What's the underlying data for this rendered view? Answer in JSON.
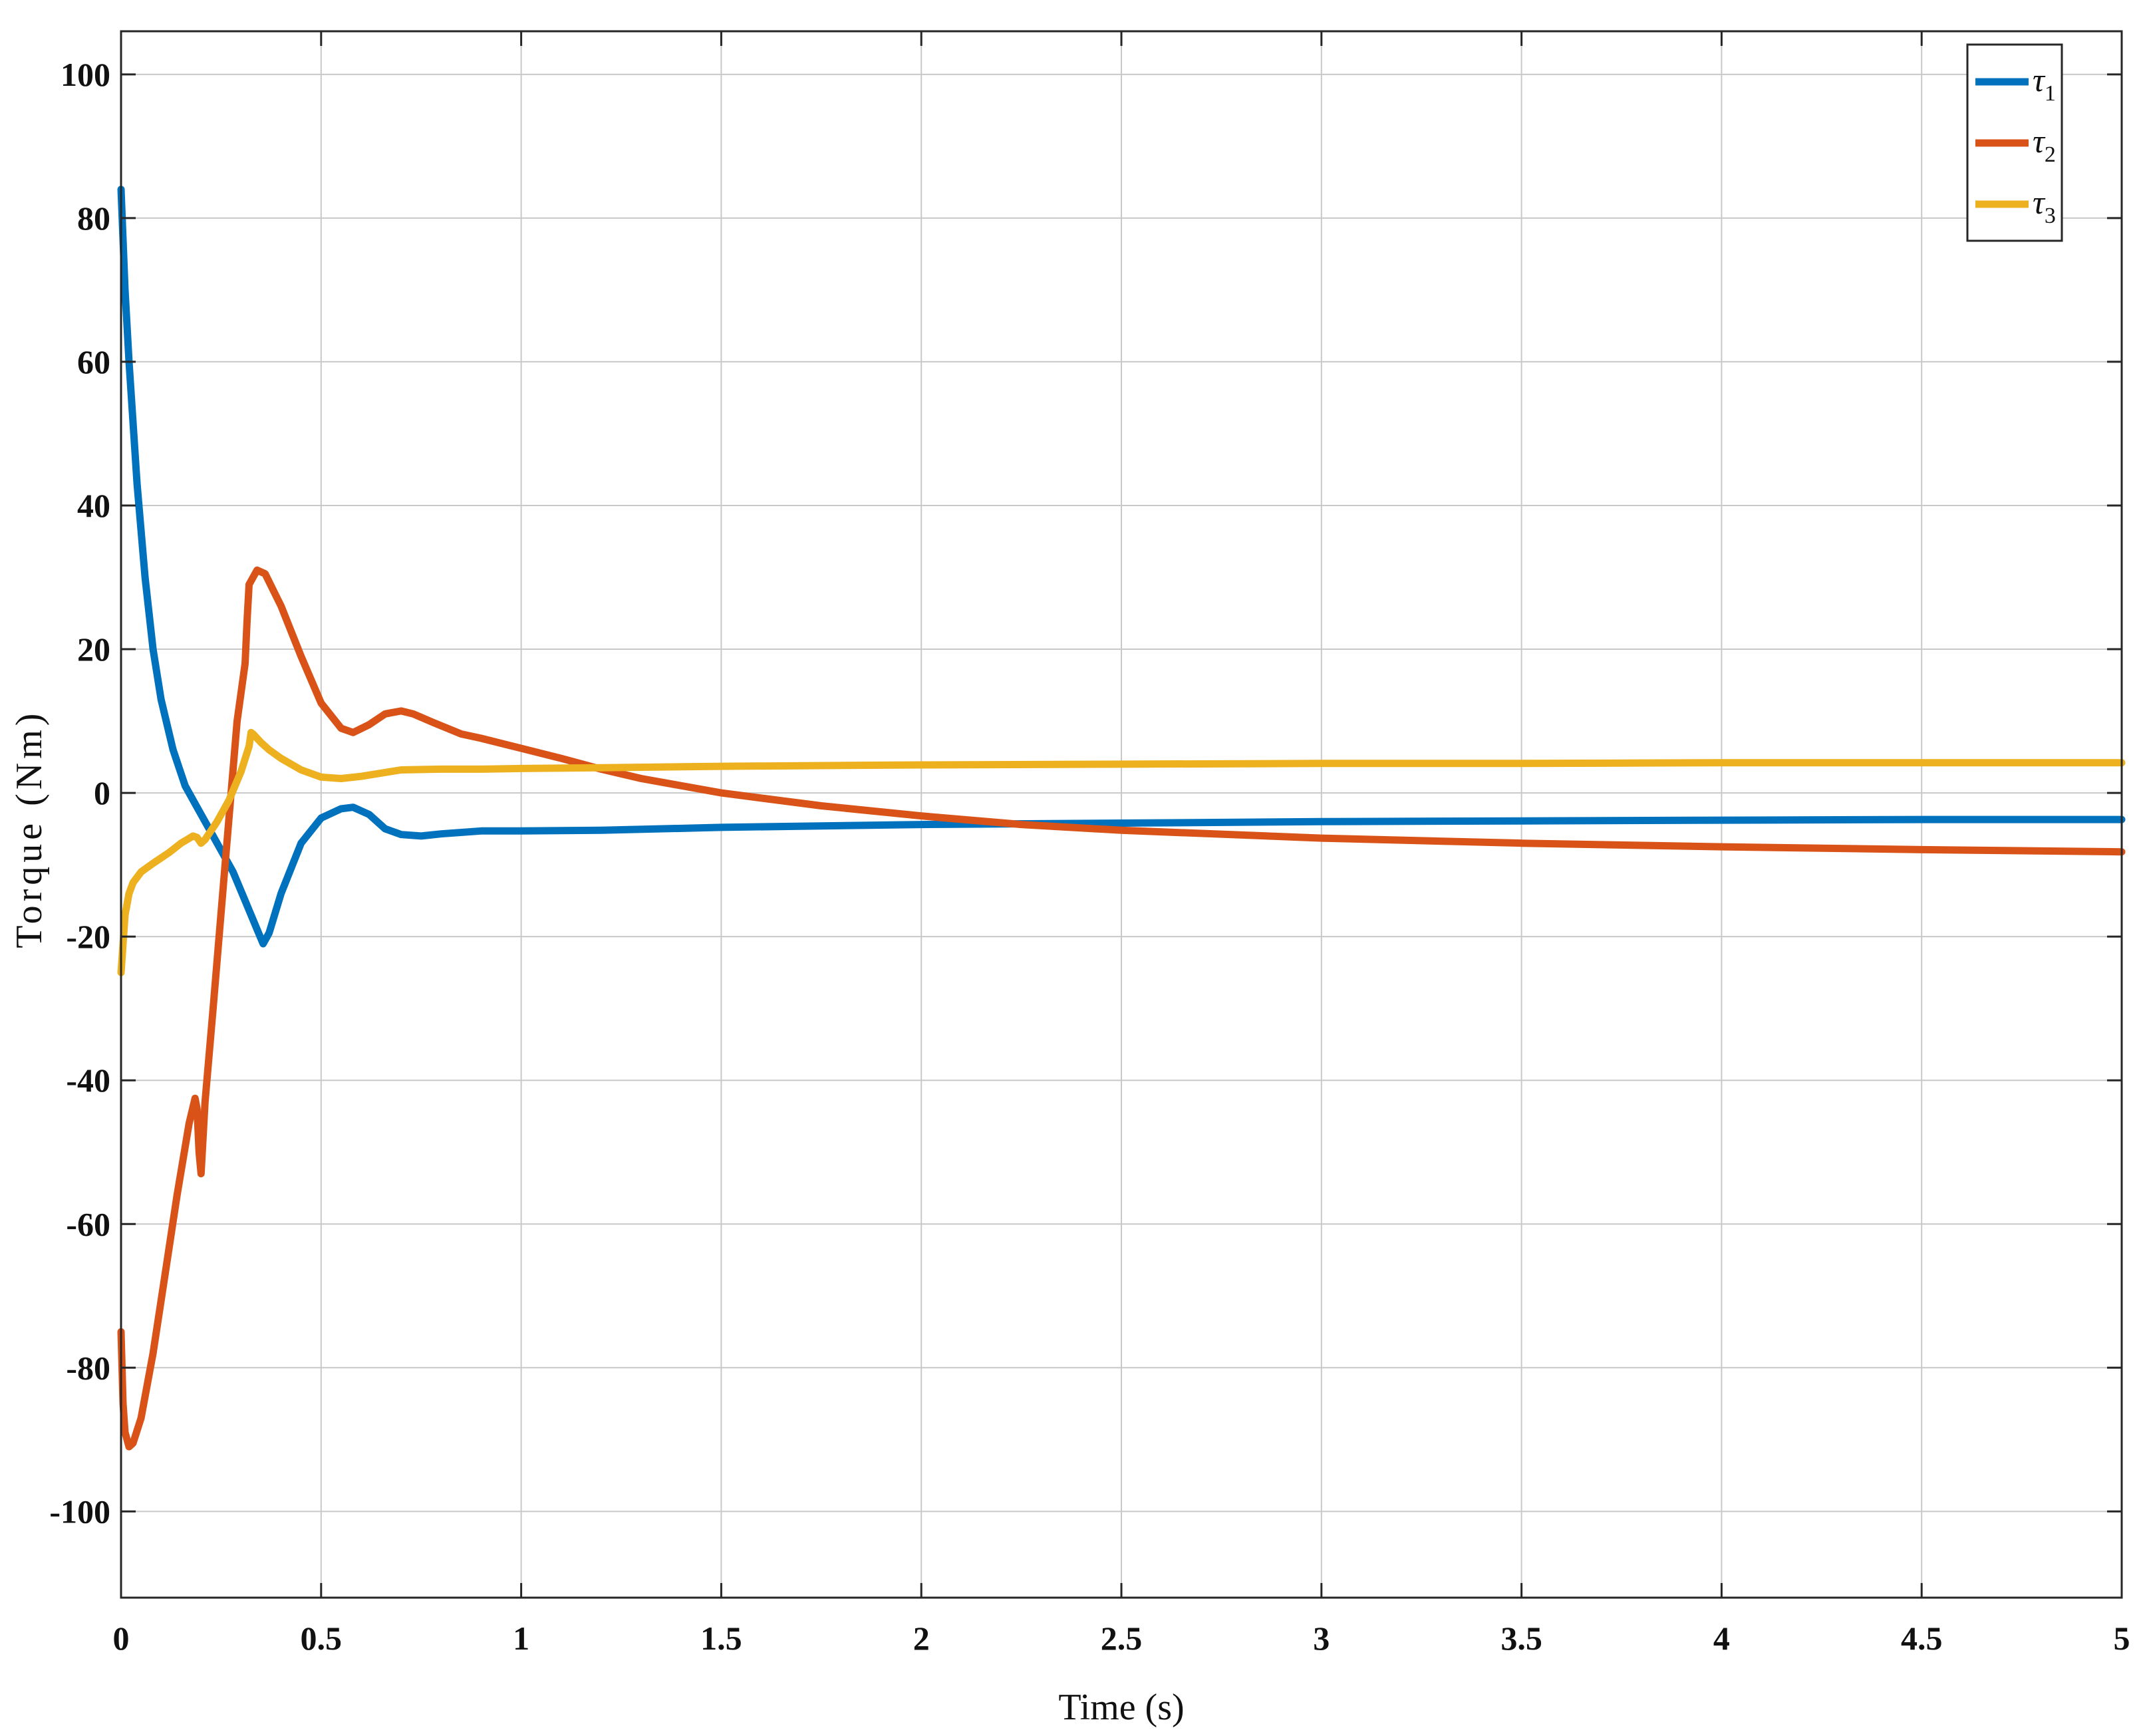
{
  "chart_data": {
    "type": "line",
    "title": "",
    "xlabel": "Time (s)",
    "ylabel": "Torque (Nm)",
    "xlim": [
      0,
      5
    ],
    "ylim": [
      -112,
      106
    ],
    "grid": true,
    "legend_position": "top-right",
    "xticks": [
      0,
      0.5,
      1,
      1.5,
      2,
      2.5,
      3,
      3.5,
      4,
      4.5,
      5
    ],
    "xtick_labels": [
      "0",
      "0.5",
      "1",
      "1.5",
      "2",
      "2.5",
      "3",
      "3.5",
      "4",
      "4.5",
      "5"
    ],
    "yticks": [
      100,
      80,
      60,
      40,
      20,
      0,
      -20,
      -40,
      -60,
      -80,
      -100
    ],
    "ytick_labels": [
      "100",
      "80",
      "60",
      "40",
      "20",
      "0",
      "-20",
      "-40",
      "-60",
      "-80",
      "-100"
    ],
    "series": [
      {
        "name": "τ1",
        "legend_base": "τ",
        "legend_sub": "1",
        "color": "#0072BD",
        "x": [
          0,
          0.01,
          0.02,
          0.04,
          0.06,
          0.08,
          0.1,
          0.13,
          0.16,
          0.19,
          0.22,
          0.25,
          0.28,
          0.31,
          0.34,
          0.355,
          0.37,
          0.4,
          0.45,
          0.5,
          0.55,
          0.58,
          0.62,
          0.66,
          0.7,
          0.75,
          0.8,
          0.9,
          1.0,
          1.2,
          1.5,
          2.0,
          2.5,
          3.0,
          3.5,
          4.0,
          4.5,
          5.0
        ],
        "y": [
          84,
          70,
          60,
          43,
          30,
          20,
          13,
          6,
          1,
          -2,
          -5,
          -8,
          -11,
          -15,
          -19,
          -21,
          -19.5,
          -14,
          -7,
          -3.5,
          -2.2,
          -2.0,
          -3,
          -5,
          -5.8,
          -6,
          -5.7,
          -5.3,
          -5.3,
          -5.2,
          -4.8,
          -4.4,
          -4.2,
          -4.0,
          -3.9,
          -3.8,
          -3.7,
          -3.7
        ]
      },
      {
        "name": "τ2",
        "legend_base": "τ",
        "legend_sub": "2",
        "color": "#D95319",
        "x": [
          0,
          0.005,
          0.01,
          0.02,
          0.03,
          0.05,
          0.08,
          0.11,
          0.14,
          0.17,
          0.185,
          0.19,
          0.195,
          0.2,
          0.21,
          0.23,
          0.26,
          0.29,
          0.31,
          0.315,
          0.32,
          0.34,
          0.36,
          0.4,
          0.45,
          0.5,
          0.55,
          0.58,
          0.62,
          0.66,
          0.7,
          0.73,
          0.78,
          0.85,
          0.9,
          1.0,
          1.1,
          1.2,
          1.3,
          1.5,
          1.75,
          2.0,
          2.25,
          2.5,
          3.0,
          3.5,
          4.0,
          4.5,
          5.0
        ],
        "y": [
          -75,
          -85,
          -89,
          -91,
          -90.5,
          -87,
          -78,
          -67,
          -56,
          -46,
          -42.5,
          -44,
          -50,
          -53,
          -43,
          -30,
          -10,
          10,
          18,
          24,
          29,
          31,
          30.5,
          26,
          19,
          12.5,
          9,
          8.4,
          9.5,
          11,
          11.4,
          11,
          9.8,
          8.2,
          7.6,
          6.2,
          4.8,
          3.3,
          2.0,
          0,
          -1.8,
          -3.2,
          -4.4,
          -5.2,
          -6.3,
          -7.0,
          -7.5,
          -7.9,
          -8.2
        ]
      },
      {
        "name": "τ3",
        "legend_base": "τ",
        "legend_sub": "3",
        "color": "#EDB120",
        "x": [
          0,
          0.005,
          0.01,
          0.02,
          0.03,
          0.05,
          0.08,
          0.12,
          0.15,
          0.18,
          0.19,
          0.2,
          0.21,
          0.24,
          0.27,
          0.3,
          0.32,
          0.325,
          0.33,
          0.35,
          0.37,
          0.4,
          0.45,
          0.5,
          0.55,
          0.6,
          0.7,
          0.8,
          0.9,
          1.0,
          1.2,
          1.5,
          2.0,
          2.5,
          3.0,
          3.5,
          4.0,
          4.5,
          5.0
        ],
        "y": [
          -25,
          -21,
          -17,
          -14,
          -12.5,
          -11,
          -9.8,
          -8.3,
          -7,
          -6,
          -6.2,
          -7,
          -6.5,
          -4,
          -1,
          3,
          6.5,
          8.4,
          8.2,
          7,
          6,
          4.8,
          3.2,
          2.2,
          2.0,
          2.3,
          3.2,
          3.3,
          3.3,
          3.4,
          3.5,
          3.7,
          3.9,
          4.0,
          4.1,
          4.1,
          4.2,
          4.2,
          4.2
        ]
      }
    ]
  }
}
